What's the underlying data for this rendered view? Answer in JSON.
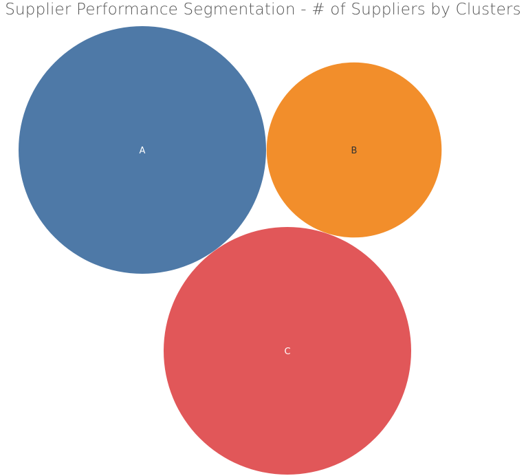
{
  "chart_data": {
    "type": "bubble",
    "title": "Supplier Performance Segmentation - # of Suppliers by Clusters",
    "measure": "# of Suppliers",
    "dimension": "Clusters",
    "clusters": [
      {
        "label": "A",
        "value": 100,
        "color": "#4e79a7",
        "label_color": "#ffffff"
      },
      {
        "label": "B",
        "value": 50,
        "color": "#f28e2b",
        "label_color": "#333333"
      },
      {
        "label": "C",
        "value": 100,
        "color": "#e15759",
        "label_color": "#ffffff"
      }
    ]
  }
}
